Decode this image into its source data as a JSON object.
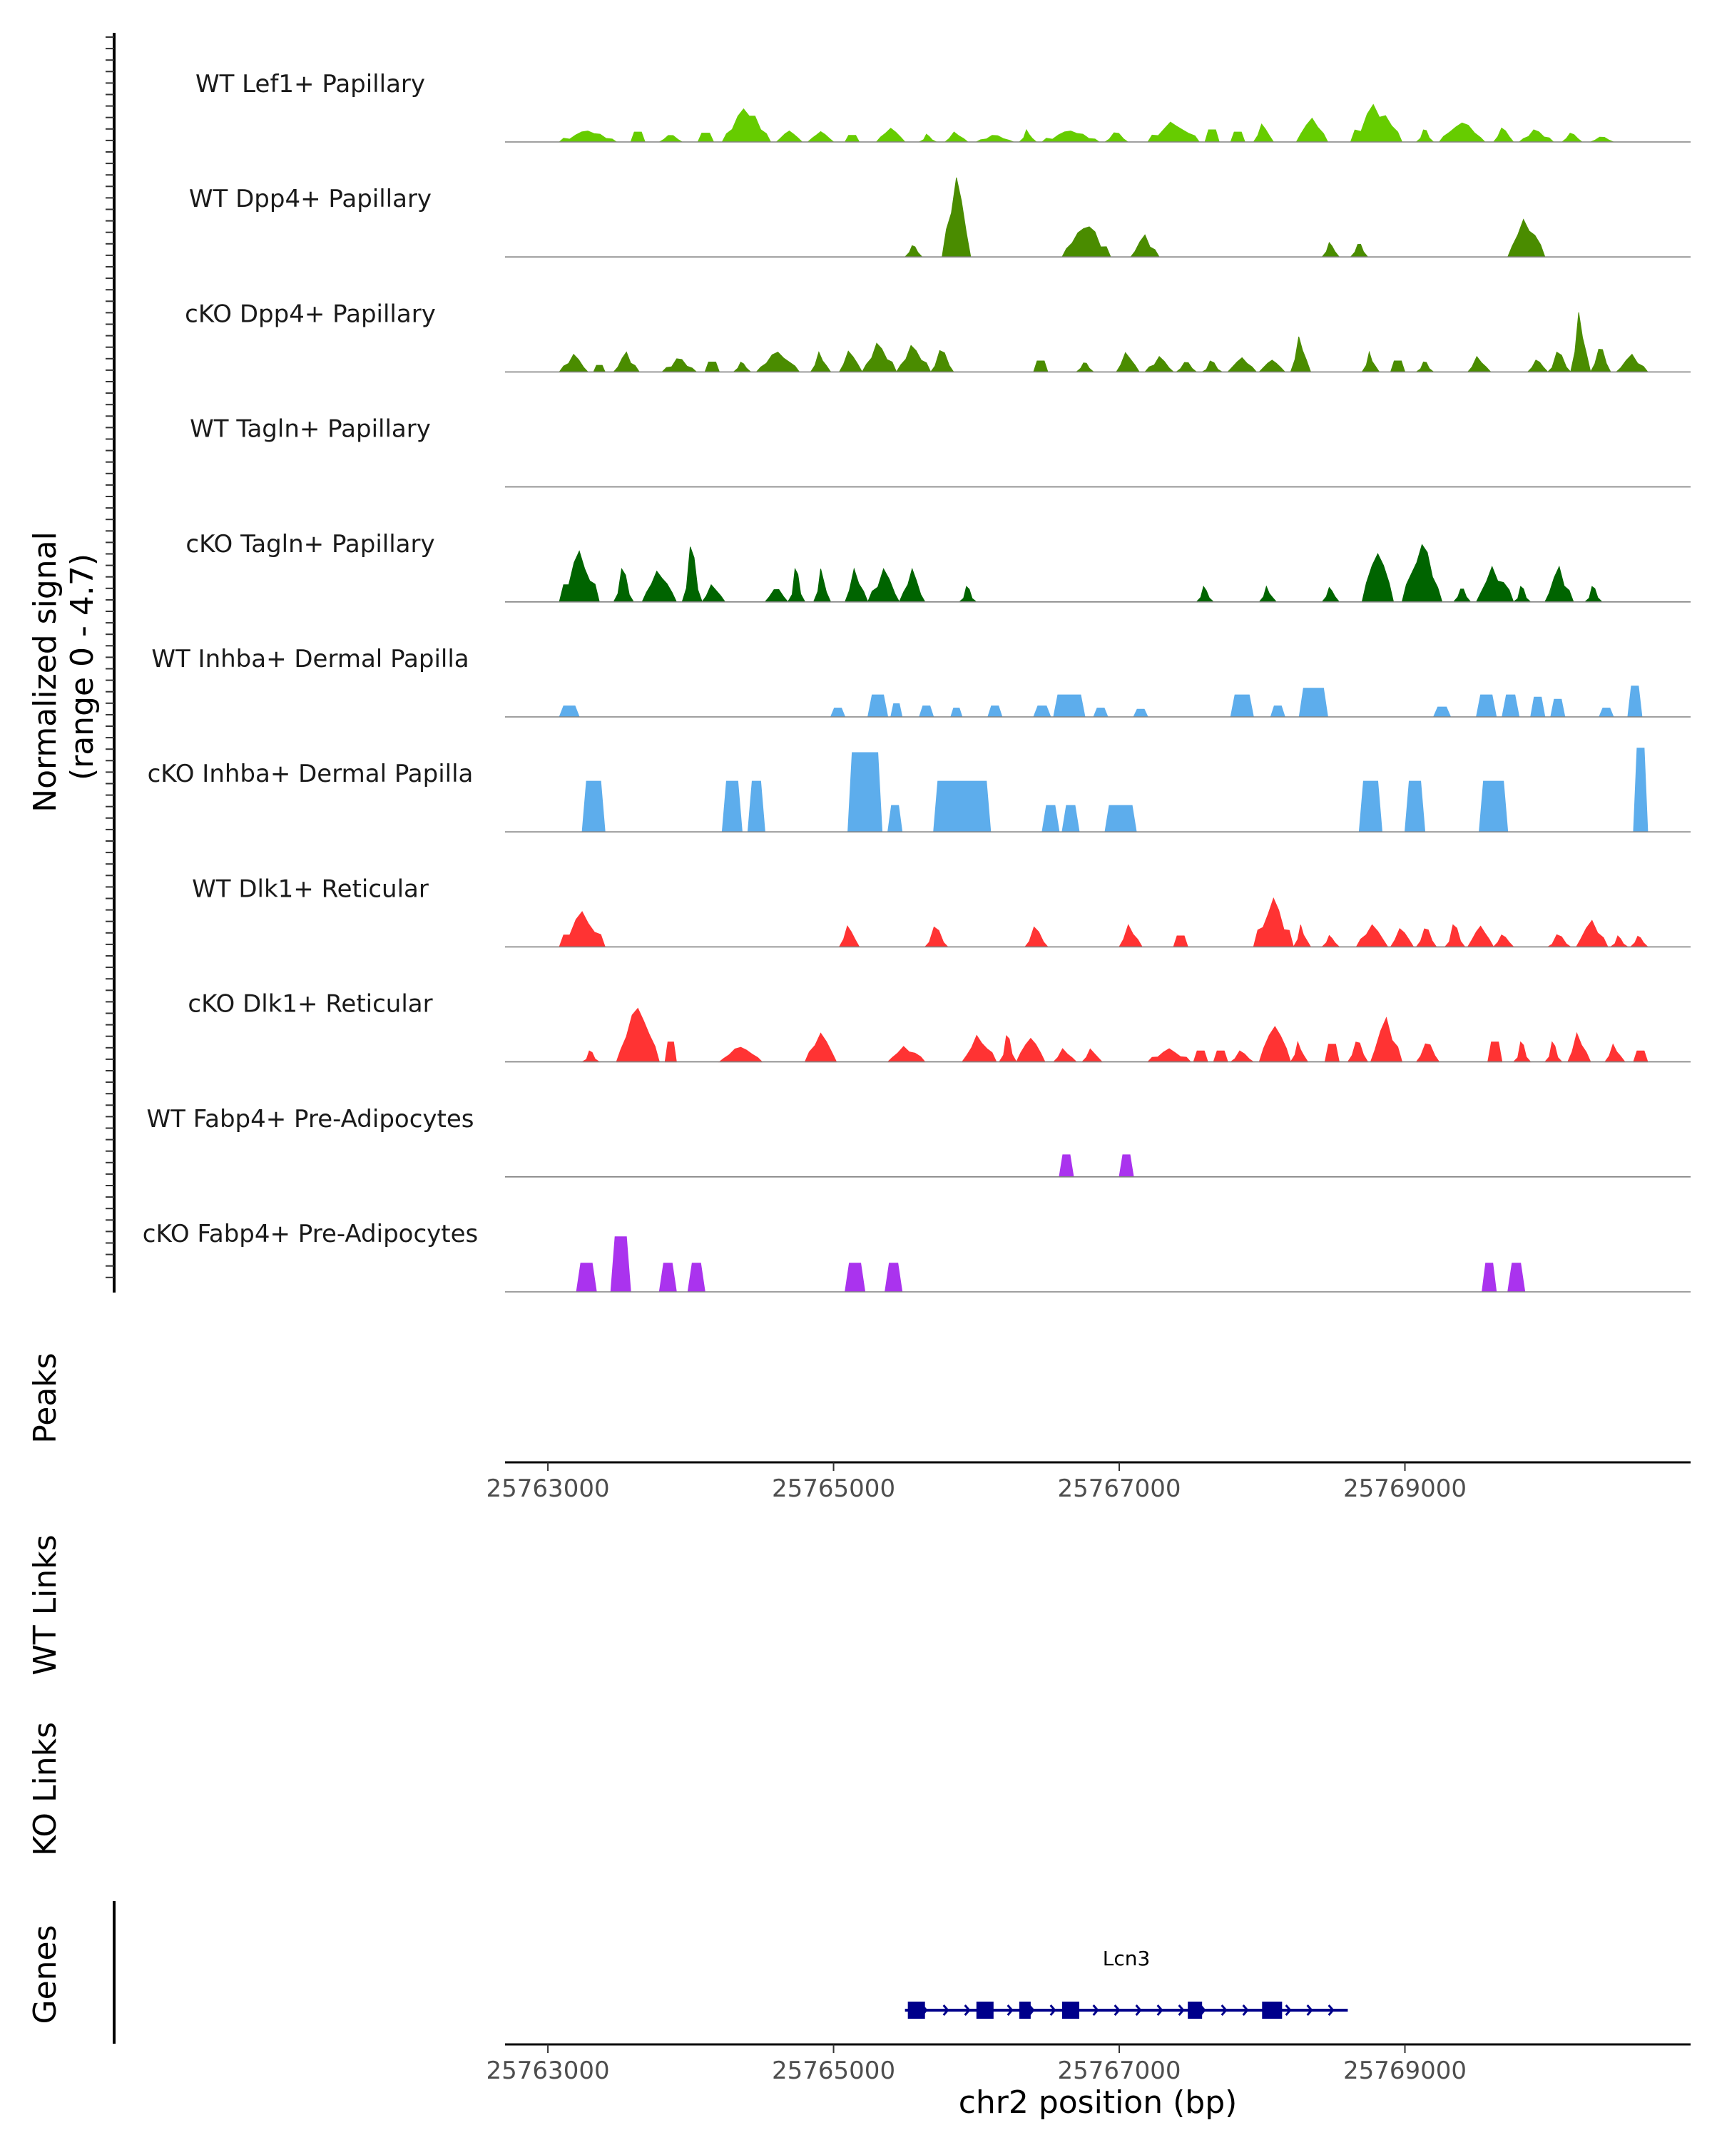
{
  "chart_data": {
    "type": "area",
    "signal_ylabel": [
      "Normalized signal",
      "(range 0 - 4.7)"
    ],
    "peaks_label": "Peaks",
    "wt_links_label": "WT Links",
    "ko_links_label": "KO Links",
    "genes_label": "Genes",
    "xlabel": "chr2 position (bp)",
    "xlim": [
      25762700,
      25771000
    ],
    "ylim": [
      0,
      4.7
    ],
    "x_ticks": [
      25763000,
      25765000,
      25767000,
      25769000
    ],
    "x_tick_labels": [
      "25763000",
      "25765000",
      "25767000",
      "25769000"
    ],
    "tracks": [
      {
        "name": "WT Lef1+ Papillary",
        "color": "#66CC00",
        "profile": "dense",
        "blocks": [
          [
            25763080,
            25763480,
            0.5
          ],
          [
            25763580,
            25763680,
            0.45
          ],
          [
            25763780,
            25763940,
            0.35
          ],
          [
            25764050,
            25764160,
            0.4
          ],
          [
            25764220,
            25764560,
            1.5
          ],
          [
            25764600,
            25764780,
            0.55
          ],
          [
            25764820,
            25765000,
            0.5
          ],
          [
            25765080,
            25765180,
            0.3
          ],
          [
            25765300,
            25765500,
            0.65
          ],
          [
            25765600,
            25765720,
            0.35
          ],
          [
            25765780,
            25765940,
            0.45
          ],
          [
            25766000,
            25766260,
            0.3
          ],
          [
            25766300,
            25766420,
            0.55
          ],
          [
            25766460,
            25766860,
            0.5
          ],
          [
            25766900,
            25767060,
            0.45
          ],
          [
            25767200,
            25767560,
            0.9
          ],
          [
            25767600,
            25767700,
            0.55
          ],
          [
            25767780,
            25767880,
            0.45
          ],
          [
            25767940,
            25768080,
            0.85
          ],
          [
            25768240,
            25768460,
            1.1
          ],
          [
            25768620,
            25768980,
            1.7
          ],
          [
            25769080,
            25769200,
            0.6
          ],
          [
            25769240,
            25769560,
            0.9
          ],
          [
            25769620,
            25769760,
            0.7
          ],
          [
            25769800,
            25770040,
            0.55
          ],
          [
            25770100,
            25770240,
            0.45
          ],
          [
            25770300,
            25770460,
            0.25
          ]
        ]
      },
      {
        "name": "WT Dpp4+ Papillary",
        "color": "#4A8C00",
        "profile": "dense",
        "blocks": [
          [
            25765500,
            25765620,
            0.6
          ],
          [
            25765760,
            25765960,
            3.6
          ],
          [
            25766600,
            25766940,
            1.5
          ],
          [
            25767080,
            25767280,
            1.0
          ],
          [
            25768420,
            25768540,
            0.7
          ],
          [
            25768620,
            25768740,
            0.7
          ],
          [
            25769720,
            25769980,
            1.7
          ]
        ]
      },
      {
        "name": "cKO Dpp4+ Papillary",
        "color": "#4A8C00",
        "profile": "dense",
        "blocks": [
          [
            25763080,
            25763280,
            0.8
          ],
          [
            25763320,
            25763400,
            0.3
          ],
          [
            25763460,
            25763640,
            0.9
          ],
          [
            25763800,
            25764040,
            0.6
          ],
          [
            25764100,
            25764200,
            0.45
          ],
          [
            25764300,
            25764420,
            0.5
          ],
          [
            25764460,
            25764760,
            0.9
          ],
          [
            25764840,
            25764980,
            0.9
          ],
          [
            25765040,
            25765200,
            1.0
          ],
          [
            25765200,
            25765440,
            1.3
          ],
          [
            25765440,
            25765680,
            1.2
          ],
          [
            25765680,
            25765840,
            1.0
          ],
          [
            25766400,
            25766500,
            0.5
          ],
          [
            25766700,
            25766820,
            0.5
          ],
          [
            25766980,
            25767140,
            0.9
          ],
          [
            25767180,
            25767380,
            0.7
          ],
          [
            25767400,
            25767540,
            0.5
          ],
          [
            25767580,
            25767720,
            0.5
          ],
          [
            25767760,
            25767960,
            0.65
          ],
          [
            25767980,
            25768160,
            0.6
          ],
          [
            25768200,
            25768340,
            1.6
          ],
          [
            25768700,
            25768820,
            0.9
          ],
          [
            25768900,
            25769000,
            0.5
          ],
          [
            25769080,
            25769200,
            0.5
          ],
          [
            25769440,
            25769600,
            0.7
          ],
          [
            25769860,
            25770000,
            0.6
          ],
          [
            25770000,
            25770160,
            0.9
          ],
          [
            25770160,
            25770300,
            2.7
          ],
          [
            25770300,
            25770440,
            1.2
          ],
          [
            25770480,
            25770700,
            0.8
          ]
        ]
      },
      {
        "name": "WT Tagln+ Papillary",
        "color": "#006400",
        "profile": "dense",
        "blocks": []
      },
      {
        "name": "cKO Tagln+ Papillary",
        "color": "#006400",
        "profile": "dense",
        "blocks": [
          [
            25763080,
            25763360,
            2.3
          ],
          [
            25763460,
            25763600,
            1.5
          ],
          [
            25763660,
            25763900,
            1.4
          ],
          [
            25763940,
            25764080,
            2.5
          ],
          [
            25764080,
            25764240,
            0.8
          ],
          [
            25764520,
            25764680,
            0.7
          ],
          [
            25764680,
            25764800,
            1.5
          ],
          [
            25764860,
            25764980,
            1.5
          ],
          [
            25765080,
            25765240,
            1.5
          ],
          [
            25765240,
            25765460,
            1.5
          ],
          [
            25765460,
            25765640,
            1.5
          ],
          [
            25765880,
            25766000,
            0.7
          ],
          [
            25767540,
            25767660,
            0.7
          ],
          [
            25767980,
            25768100,
            0.7
          ],
          [
            25768420,
            25768540,
            0.7
          ],
          [
            25768700,
            25768920,
            2.5
          ],
          [
            25768980,
            25769260,
            2.6
          ],
          [
            25769340,
            25769460,
            0.7
          ],
          [
            25769500,
            25769760,
            1.6
          ],
          [
            25769760,
            25769880,
            0.7
          ],
          [
            25769980,
            25770180,
            1.6
          ],
          [
            25770260,
            25770380,
            0.7
          ]
        ]
      },
      {
        "name": "WT Inhba+ Dermal Papilla",
        "color": "#5DADEC",
        "profile": "block",
        "blocks": [
          [
            25763080,
            25763220,
            0.5
          ],
          [
            25764980,
            25765080,
            0.4
          ],
          [
            25765240,
            25765380,
            1.0
          ],
          [
            25765400,
            25765480,
            0.6
          ],
          [
            25765600,
            25765700,
            0.5
          ],
          [
            25765820,
            25765900,
            0.4
          ],
          [
            25766080,
            25766180,
            0.5
          ],
          [
            25766400,
            25766520,
            0.5
          ],
          [
            25766540,
            25766760,
            1.0
          ],
          [
            25766820,
            25766920,
            0.4
          ],
          [
            25767100,
            25767200,
            0.35
          ],
          [
            25767780,
            25767940,
            1.0
          ],
          [
            25768060,
            25768160,
            0.5
          ],
          [
            25768260,
            25768460,
            1.3
          ],
          [
            25769200,
            25769320,
            0.45
          ],
          [
            25769500,
            25769640,
            1.0
          ],
          [
            25769680,
            25769800,
            1.0
          ],
          [
            25769880,
            25769980,
            0.9
          ],
          [
            25770020,
            25770120,
            0.8
          ],
          [
            25770360,
            25770460,
            0.4
          ],
          [
            25770560,
            25770660,
            1.4
          ]
        ]
      },
      {
        "name": "cKO Inhba+ Dermal Papilla",
        "color": "#5DADEC",
        "profile": "block",
        "blocks": [
          [
            25763240,
            25763400,
            2.3
          ],
          [
            25764220,
            25764360,
            2.3
          ],
          [
            25764400,
            25764520,
            2.3
          ],
          [
            25765100,
            25765340,
            3.6
          ],
          [
            25765380,
            25765480,
            1.2
          ],
          [
            25765700,
            25766100,
            2.3
          ],
          [
            25766460,
            25766580,
            1.2
          ],
          [
            25766600,
            25766720,
            1.2
          ],
          [
            25766900,
            25767120,
            1.2
          ],
          [
            25768680,
            25768840,
            2.3
          ],
          [
            25769000,
            25769140,
            2.3
          ],
          [
            25769520,
            25769720,
            2.3
          ],
          [
            25770600,
            25770700,
            3.8
          ]
        ]
      },
      {
        "name": "WT Dlk1+ Reticular",
        "color": "#FF3333",
        "profile": "dense",
        "blocks": [
          [
            25763080,
            25763400,
            1.6
          ],
          [
            25765040,
            25765180,
            1.0
          ],
          [
            25765640,
            25765800,
            0.9
          ],
          [
            25766340,
            25766500,
            0.9
          ],
          [
            25767000,
            25767160,
            1.0
          ],
          [
            25767380,
            25767480,
            0.5
          ],
          [
            25767940,
            25768220,
            2.2
          ],
          [
            25768220,
            25768340,
            1.0
          ],
          [
            25768420,
            25768540,
            0.55
          ],
          [
            25768660,
            25768880,
            1.0
          ],
          [
            25768900,
            25769060,
            0.9
          ],
          [
            25769080,
            25769220,
            0.9
          ],
          [
            25769280,
            25769420,
            1.0
          ],
          [
            25769440,
            25769620,
            1.0
          ],
          [
            25769620,
            25769760,
            0.6
          ],
          [
            25770000,
            25770160,
            0.55
          ],
          [
            25770200,
            25770420,
            1.2
          ],
          [
            25770440,
            25770560,
            0.5
          ],
          [
            25770580,
            25770700,
            0.55
          ]
        ]
      },
      {
        "name": "cKO Dlk1+ Reticular",
        "color": "#FF3333",
        "profile": "dense",
        "blocks": [
          [
            25763240,
            25763360,
            0.5
          ],
          [
            25763480,
            25763780,
            2.5
          ],
          [
            25763820,
            25763900,
            0.9
          ],
          [
            25764200,
            25764500,
            0.7
          ],
          [
            25764800,
            25765020,
            1.3
          ],
          [
            25765380,
            25765640,
            0.7
          ],
          [
            25765900,
            25766140,
            1.2
          ],
          [
            25766160,
            25766280,
            1.2
          ],
          [
            25766280,
            25766480,
            1.2
          ],
          [
            25766540,
            25766700,
            0.6
          ],
          [
            25766740,
            25766880,
            0.6
          ],
          [
            25767200,
            25767500,
            0.6
          ],
          [
            25767520,
            25767620,
            0.5
          ],
          [
            25767660,
            25767760,
            0.5
          ],
          [
            25767780,
            25767940,
            0.5
          ],
          [
            25767980,
            25768200,
            1.8
          ],
          [
            25768200,
            25768320,
            0.9
          ],
          [
            25768440,
            25768540,
            0.8
          ],
          [
            25768600,
            25768740,
            1.0
          ],
          [
            25768760,
            25768980,
            2.0
          ],
          [
            25769080,
            25769240,
            0.9
          ],
          [
            25769580,
            25769680,
            0.9
          ],
          [
            25769760,
            25769880,
            0.9
          ],
          [
            25769980,
            25770100,
            0.9
          ],
          [
            25770140,
            25770300,
            1.3
          ],
          [
            25770400,
            25770540,
            0.8
          ],
          [
            25770600,
            25770700,
            0.5
          ]
        ]
      },
      {
        "name": "WT Fabp4+ Pre-Adipocytes",
        "color": "#AA33EE",
        "profile": "block",
        "blocks": [
          [
            25766580,
            25766680,
            1.0
          ],
          [
            25767000,
            25767100,
            1.0
          ]
        ]
      },
      {
        "name": "cKO Fabp4+ Pre-Adipocytes",
        "color": "#AA33EE",
        "profile": "block",
        "blocks": [
          [
            25763200,
            25763340,
            1.3
          ],
          [
            25763440,
            25763580,
            2.5
          ],
          [
            25763780,
            25763900,
            1.3
          ],
          [
            25763980,
            25764100,
            1.3
          ],
          [
            25765080,
            25765220,
            1.3
          ],
          [
            25765360,
            25765480,
            1.3
          ],
          [
            25769540,
            25769640,
            1.3
          ],
          [
            25769720,
            25769840,
            1.3
          ]
        ]
      }
    ],
    "gene": {
      "name": "Lcn3",
      "strand": "+",
      "start": 25765500,
      "end": 25768600,
      "exons": [
        [
          25765520,
          25765640
        ],
        [
          25766000,
          25766120
        ],
        [
          25766300,
          25766380
        ],
        [
          25766600,
          25766720
        ],
        [
          25767480,
          25767580
        ],
        [
          25768000,
          25768140
        ]
      ],
      "color": "#00008B"
    }
  }
}
